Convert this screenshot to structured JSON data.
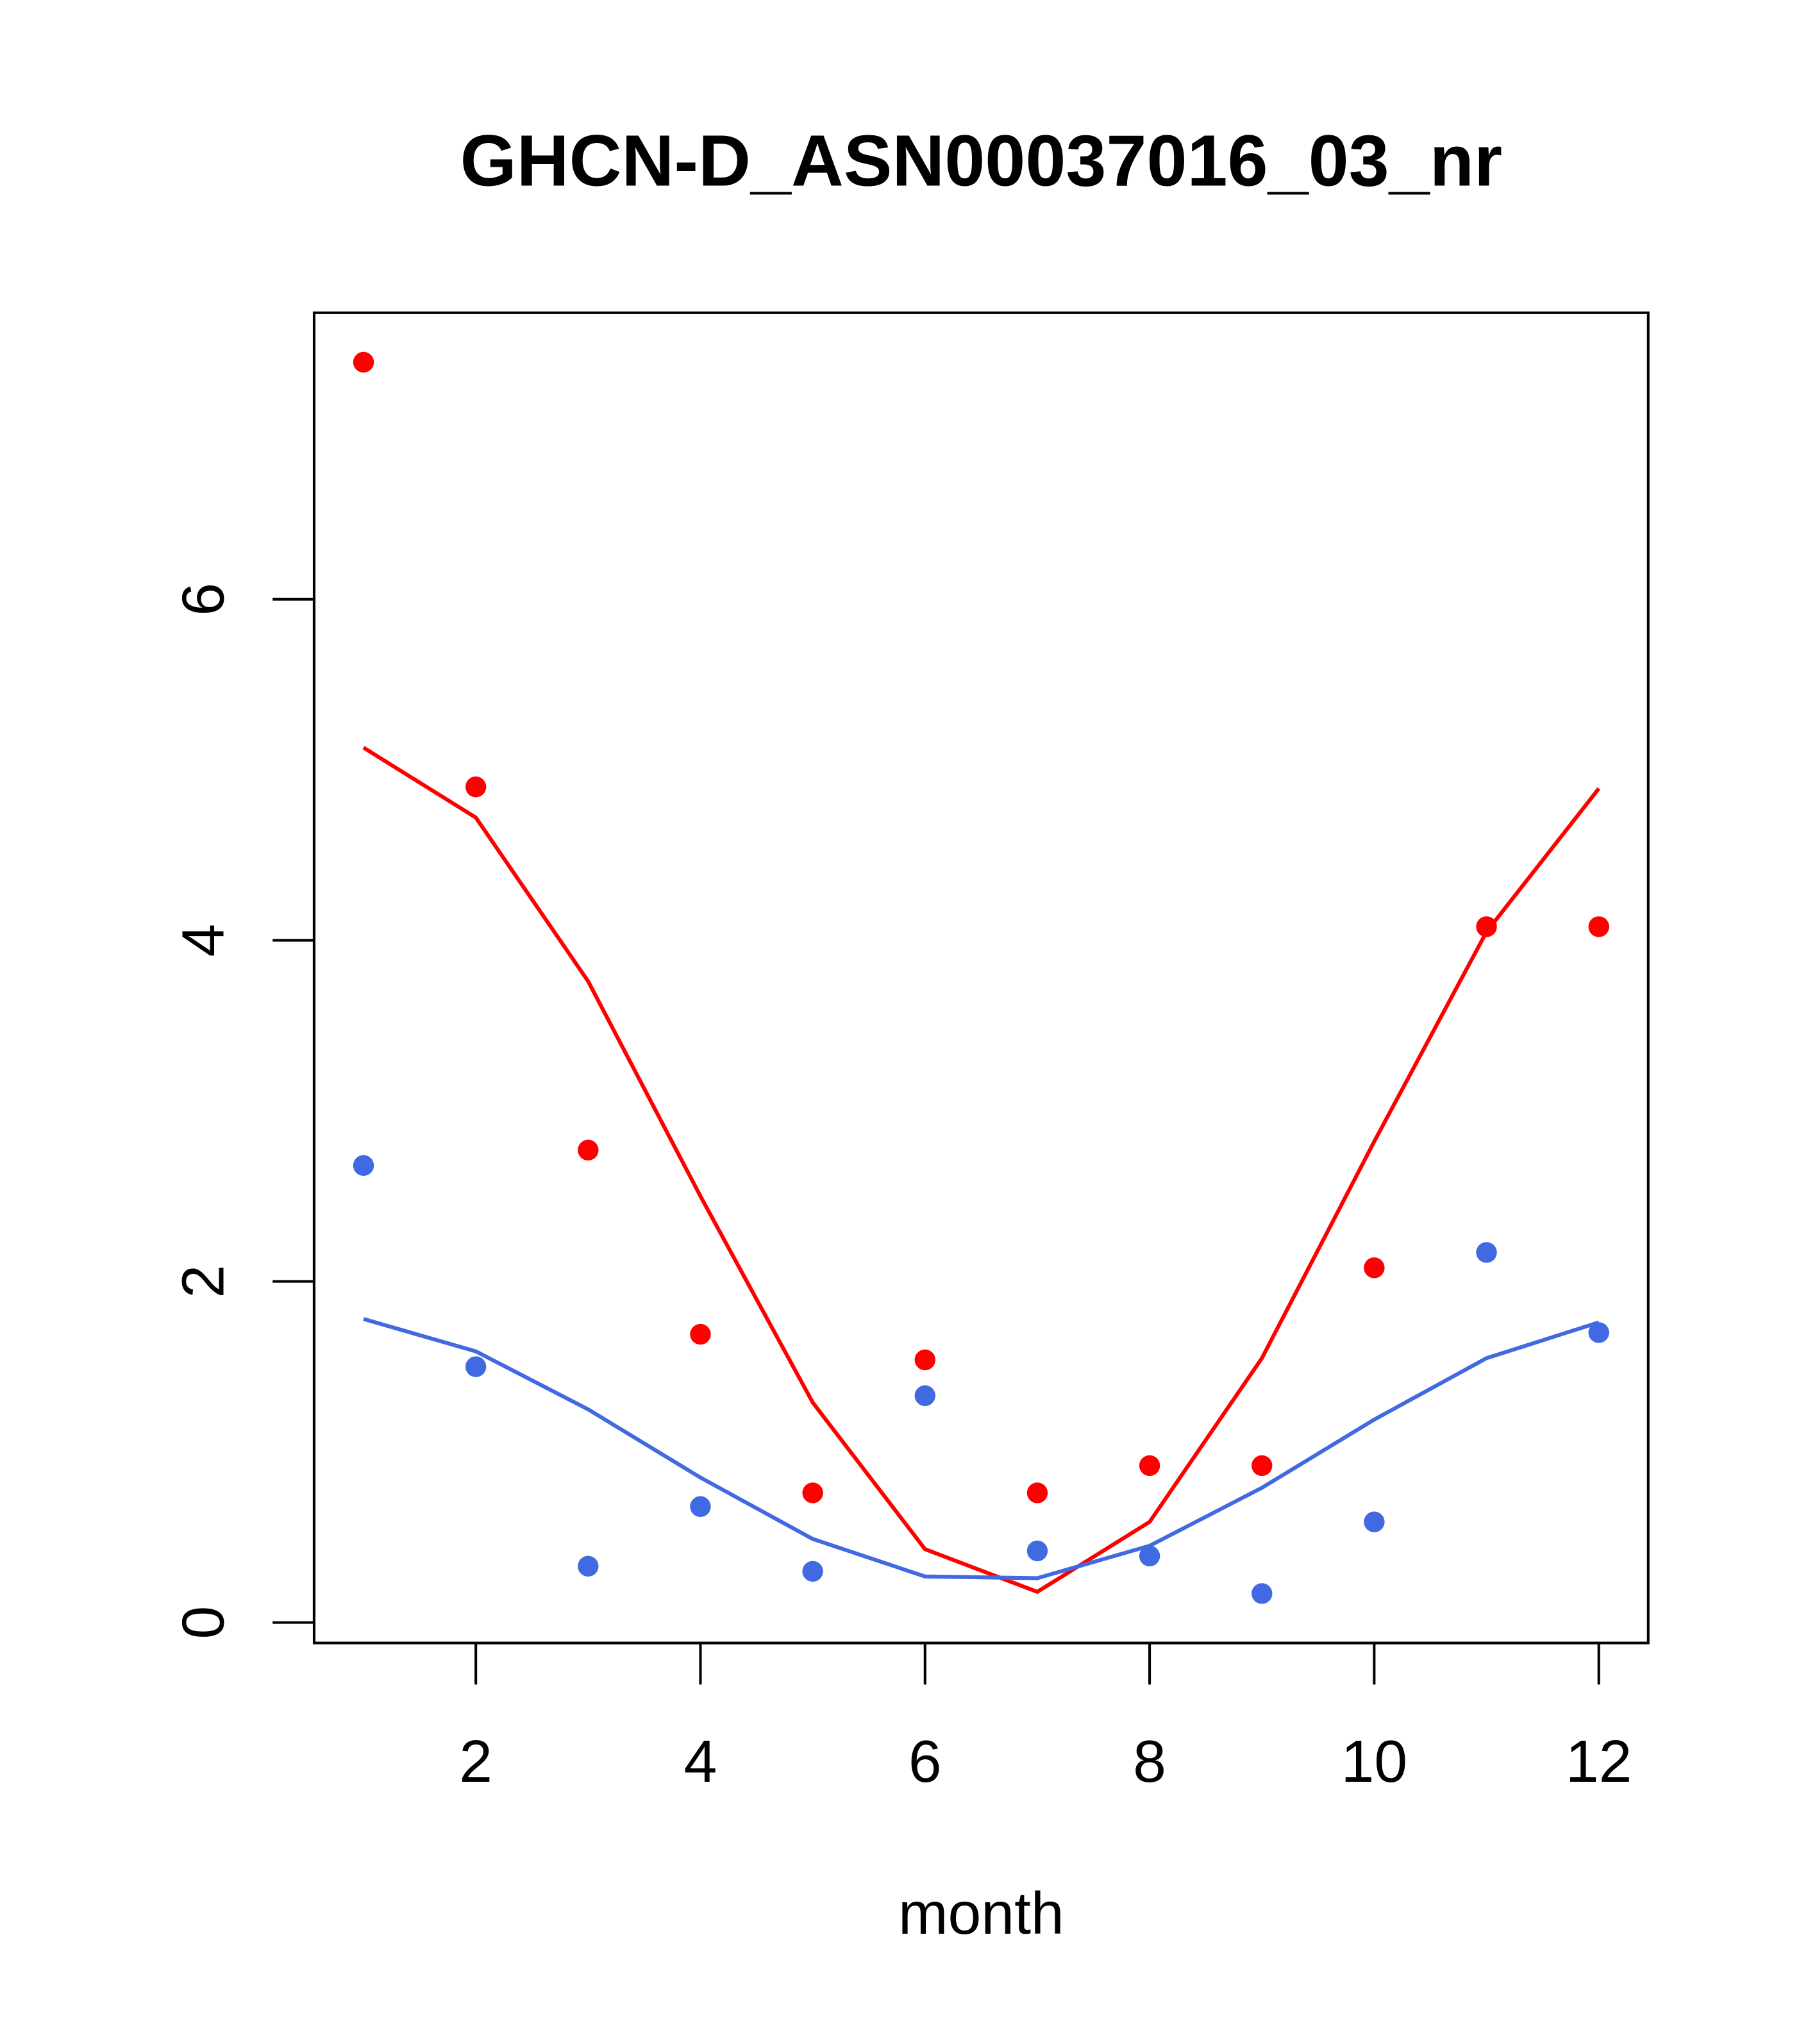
{
  "chart_data": {
    "type": "scatter",
    "title": "GHCN-D_ASN00037016_03_nr",
    "xlabel": "month",
    "ylabel": "",
    "xlim": [
      0.56,
      12.44
    ],
    "ylim": [
      -0.12,
      7.68
    ],
    "xticks": [
      2,
      4,
      6,
      8,
      10,
      12
    ],
    "yticks": [
      0,
      2,
      4,
      6
    ],
    "grid": false,
    "x": [
      1,
      2,
      3,
      4,
      5,
      6,
      7,
      8,
      9,
      10,
      11,
      12
    ],
    "series": [
      {
        "name": "red points",
        "kind": "points",
        "color": "#ff0000",
        "values": [
          7.39,
          4.9,
          2.77,
          1.69,
          0.76,
          1.54,
          0.76,
          0.92,
          0.92,
          2.08,
          4.08,
          4.08
        ]
      },
      {
        "name": "red line",
        "kind": "line",
        "color": "#ff0000",
        "values": [
          5.13,
          4.72,
          3.76,
          2.5,
          1.29,
          0.43,
          0.18,
          0.59,
          1.55,
          2.82,
          4.05,
          4.89
        ]
      },
      {
        "name": "blue points",
        "kind": "points",
        "color": "#4169e1",
        "values": [
          2.68,
          1.5,
          0.33,
          0.68,
          0.3,
          1.33,
          0.42,
          0.39,
          0.17,
          0.59,
          2.17,
          1.7
        ]
      },
      {
        "name": "blue line",
        "kind": "line",
        "color": "#4169e1",
        "values": [
          1.78,
          1.59,
          1.25,
          0.85,
          0.49,
          0.27,
          0.26,
          0.45,
          0.79,
          1.19,
          1.55,
          1.76
        ]
      }
    ]
  }
}
